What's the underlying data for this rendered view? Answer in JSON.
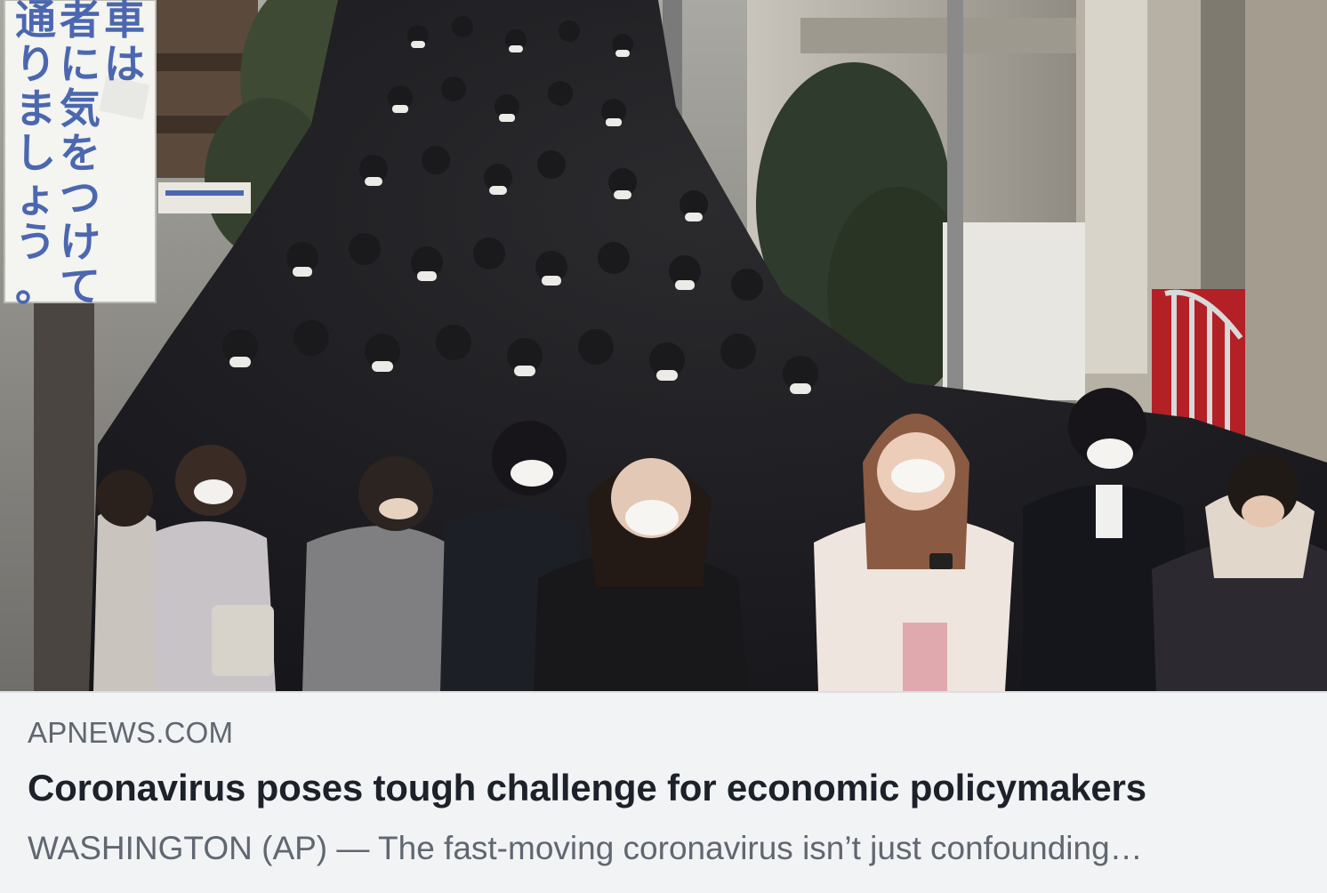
{
  "link_card": {
    "domain": "APNEWS.COM",
    "headline": "Coronavirus poses tough challenge for economic policymakers",
    "description": "WASHINGTON (AP) — The fast-moving coronavirus isn’t just confounding…"
  },
  "photo": {
    "sign_columns": [
      "車は",
      "者に気をつけて",
      "通りましょう。"
    ]
  },
  "colors": {
    "card_background": "#f2f3f5",
    "domain_text": "#606770",
    "headline_text": "#1d2129",
    "description_text": "#606770",
    "sign_text": "#4b67b0"
  }
}
